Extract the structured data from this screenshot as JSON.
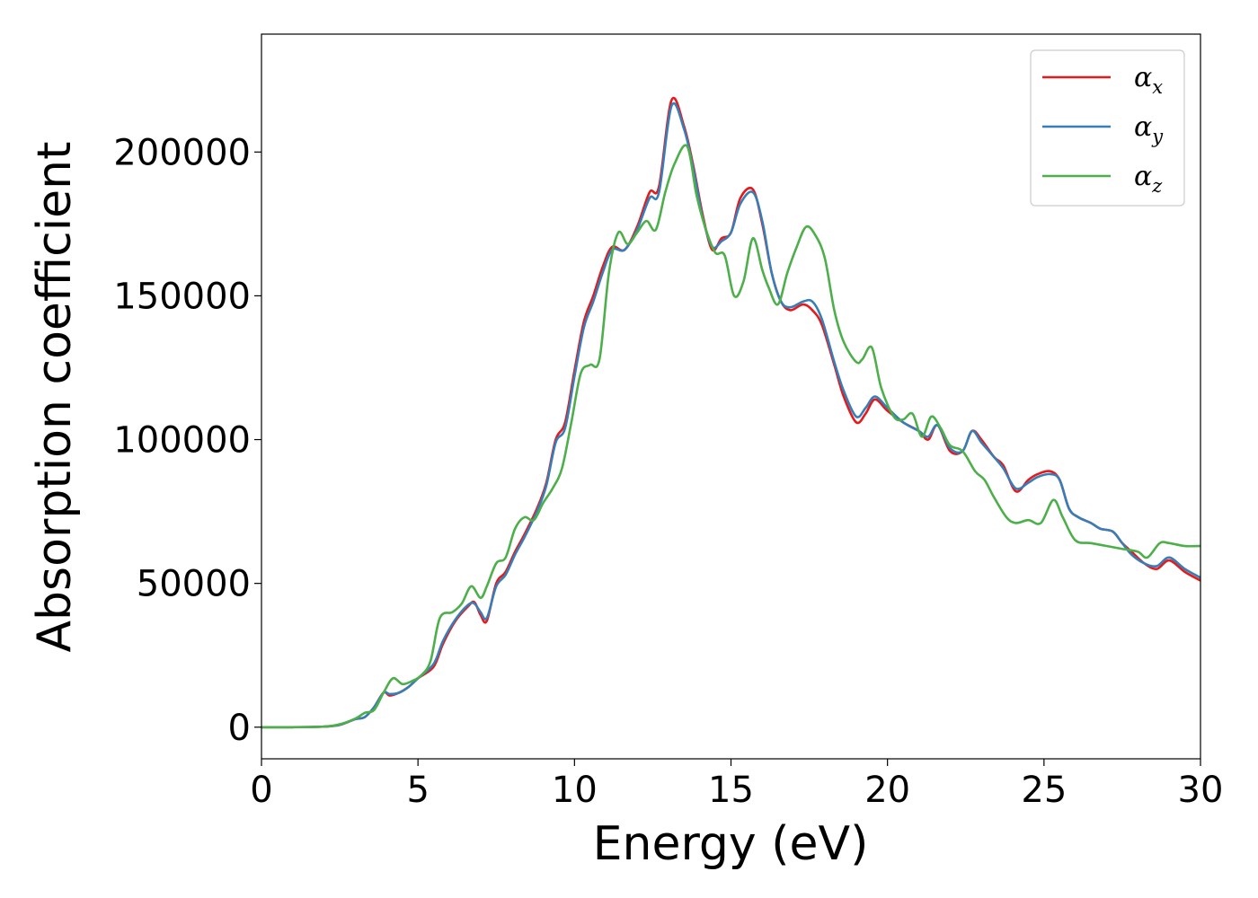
{
  "chart_data": {
    "type": "line",
    "title": "",
    "xlabel": "Energy (eV)",
    "ylabel": "Absorption coefficient",
    "xlim": [
      0,
      30
    ],
    "ylim": [
      -11000,
      241000
    ],
    "xticks": [
      0,
      5,
      10,
      15,
      20,
      25,
      30
    ],
    "yticks": [
      0,
      50000,
      100000,
      150000,
      200000
    ],
    "xtick_labels": [
      "0",
      "5",
      "10",
      "15",
      "20",
      "25",
      "30"
    ],
    "ytick_labels": [
      "0",
      "50000",
      "100000",
      "150000",
      "200000"
    ],
    "grid": false,
    "legend_position": "top-right",
    "series": [
      {
        "name": "α",
        "subscript": "x",
        "color": "#e41a1c",
        "x": [
          0,
          1,
          2,
          2.5,
          3,
          3.3,
          3.6,
          3.9,
          4.1,
          4.4,
          4.7,
          5,
          5.5,
          5.8,
          6.2,
          6.6,
          6.8,
          7,
          7.2,
          7.5,
          7.8,
          8.1,
          8.4,
          8.8,
          9.1,
          9.4,
          9.7,
          10,
          10.3,
          10.6,
          10.9,
          11.2,
          11.6,
          12,
          12.4,
          12.7,
          13.1,
          13.5,
          13.8,
          14.1,
          14.4,
          14.7,
          15,
          15.3,
          15.7,
          16,
          16.3,
          16.6,
          16.9,
          17.3,
          17.6,
          17.9,
          18.3,
          18.6,
          19,
          19.3,
          19.6,
          20,
          20.5,
          21,
          21.3,
          21.6,
          22,
          22.4,
          22.7,
          23,
          23.4,
          23.7,
          24.1,
          24.5,
          24.8,
          25.2,
          25.5,
          25.8,
          26.1,
          26.5,
          26.8,
          27.2,
          27.5,
          27.8,
          28.2,
          28.6,
          29,
          29.5,
          30
        ],
        "values": [
          0,
          0,
          200,
          800,
          2800,
          3500,
          7000,
          12000,
          11000,
          12000,
          14000,
          17000,
          21000,
          29000,
          37000,
          42000,
          43500,
          39000,
          37000,
          50000,
          54000,
          61000,
          67000,
          76000,
          85000,
          100000,
          106000,
          124000,
          141000,
          150000,
          160000,
          167000,
          166000,
          174000,
          186000,
          188000,
          218000,
          209000,
          195000,
          178000,
          166000,
          170000,
          172000,
          184000,
          187000,
          175000,
          158000,
          148000,
          145000,
          147000,
          145000,
          140000,
          126000,
          115000,
          106000,
          109000,
          114000,
          110000,
          106000,
          103000,
          100000,
          105000,
          96000,
          96000,
          103000,
          100000,
          94000,
          91000,
          82000,
          86000,
          88000,
          89000,
          86000,
          76000,
          73000,
          71000,
          69000,
          68000,
          64000,
          61000,
          57000,
          55000,
          58000,
          54000,
          51000
        ]
      },
      {
        "name": "α",
        "subscript": "y",
        "color": "#377eb8",
        "x": [
          0,
          1,
          2,
          2.5,
          3,
          3.3,
          3.6,
          3.9,
          4.1,
          4.4,
          4.7,
          5,
          5.5,
          5.8,
          6.2,
          6.6,
          6.8,
          7,
          7.2,
          7.5,
          7.8,
          8.1,
          8.4,
          8.8,
          9.1,
          9.4,
          9.7,
          10,
          10.3,
          10.6,
          10.9,
          11.2,
          11.6,
          12,
          12.4,
          12.7,
          13.1,
          13.5,
          13.8,
          14.1,
          14.4,
          14.7,
          15,
          15.3,
          15.7,
          16,
          16.3,
          16.6,
          16.9,
          17.3,
          17.6,
          17.9,
          18.3,
          18.6,
          19,
          19.3,
          19.6,
          20,
          20.5,
          21,
          21.3,
          21.6,
          22,
          22.4,
          22.7,
          23,
          23.4,
          23.7,
          24.1,
          24.5,
          24.8,
          25.2,
          25.5,
          25.8,
          26.1,
          26.5,
          26.8,
          27.2,
          27.5,
          27.8,
          28.2,
          28.6,
          29,
          29.5,
          30
        ],
        "values": [
          0,
          0,
          200,
          800,
          2800,
          3500,
          7000,
          12000,
          11500,
          12000,
          14000,
          17000,
          22000,
          30000,
          37500,
          42500,
          43000,
          40000,
          38000,
          49000,
          53000,
          60000,
          66000,
          75000,
          84000,
          99000,
          104000,
          122000,
          139000,
          148000,
          158000,
          166000,
          166000,
          173000,
          184000,
          186000,
          216000,
          208000,
          194000,
          177000,
          167000,
          169000,
          172000,
          182000,
          186000,
          176000,
          158000,
          148000,
          146000,
          148000,
          148000,
          142000,
          127000,
          117000,
          108000,
          111000,
          115000,
          111000,
          106000,
          103000,
          101000,
          105000,
          97000,
          96000,
          103000,
          99000,
          94000,
          90000,
          83000,
          85000,
          87000,
          88000,
          86000,
          76000,
          73000,
          71000,
          69000,
          68000,
          64000,
          60000,
          57000,
          56000,
          59000,
          55000,
          52000
        ]
      },
      {
        "name": "α",
        "subscript": "z",
        "color": "#4daf4a",
        "x": [
          0,
          1,
          2,
          2.5,
          3,
          3.3,
          3.6,
          3.9,
          4.2,
          4.5,
          4.8,
          5.1,
          5.4,
          5.7,
          6.1,
          6.4,
          6.7,
          7,
          7.2,
          7.5,
          7.8,
          8.1,
          8.4,
          8.7,
          9,
          9.3,
          9.6,
          9.9,
          10.2,
          10.5,
          10.8,
          11.1,
          11.4,
          11.7,
          12,
          12.3,
          12.6,
          12.9,
          13.2,
          13.6,
          13.9,
          14.2,
          14.5,
          14.8,
          15.1,
          15.4,
          15.7,
          16,
          16.2,
          16.5,
          16.8,
          17.1,
          17.4,
          17.7,
          18,
          18.3,
          18.6,
          19,
          19.2,
          19.5,
          19.8,
          20.2,
          20.5,
          20.8,
          21.1,
          21.4,
          21.7,
          22,
          22.4,
          22.8,
          23.1,
          23.4,
          23.8,
          24.1,
          24.5,
          24.9,
          25.3,
          25.6,
          26,
          26.5,
          27,
          27.5,
          28,
          28.3,
          28.7,
          29,
          29.5,
          30
        ],
        "values": [
          0,
          0,
          200,
          1000,
          3000,
          5000,
          6000,
          12000,
          17000,
          15000,
          16000,
          18000,
          23000,
          38000,
          40000,
          43000,
          49000,
          45000,
          49000,
          57000,
          59000,
          69000,
          73000,
          72000,
          78000,
          83000,
          90000,
          106000,
          123000,
          126000,
          128000,
          158000,
          172000,
          168000,
          172000,
          176000,
          173000,
          186000,
          196000,
          202000,
          185000,
          173000,
          165000,
          164000,
          150000,
          155000,
          170000,
          159000,
          153000,
          147000,
          158000,
          167000,
          174000,
          171000,
          163000,
          145000,
          134000,
          127000,
          128000,
          132000,
          118000,
          108000,
          107000,
          109000,
          101000,
          108000,
          104000,
          98000,
          96000,
          89000,
          86000,
          80000,
          73000,
          71000,
          72000,
          71000,
          79000,
          73000,
          65000,
          64000,
          63000,
          62000,
          61000,
          59000,
          64000,
          64000,
          63000,
          63000
        ]
      }
    ]
  }
}
